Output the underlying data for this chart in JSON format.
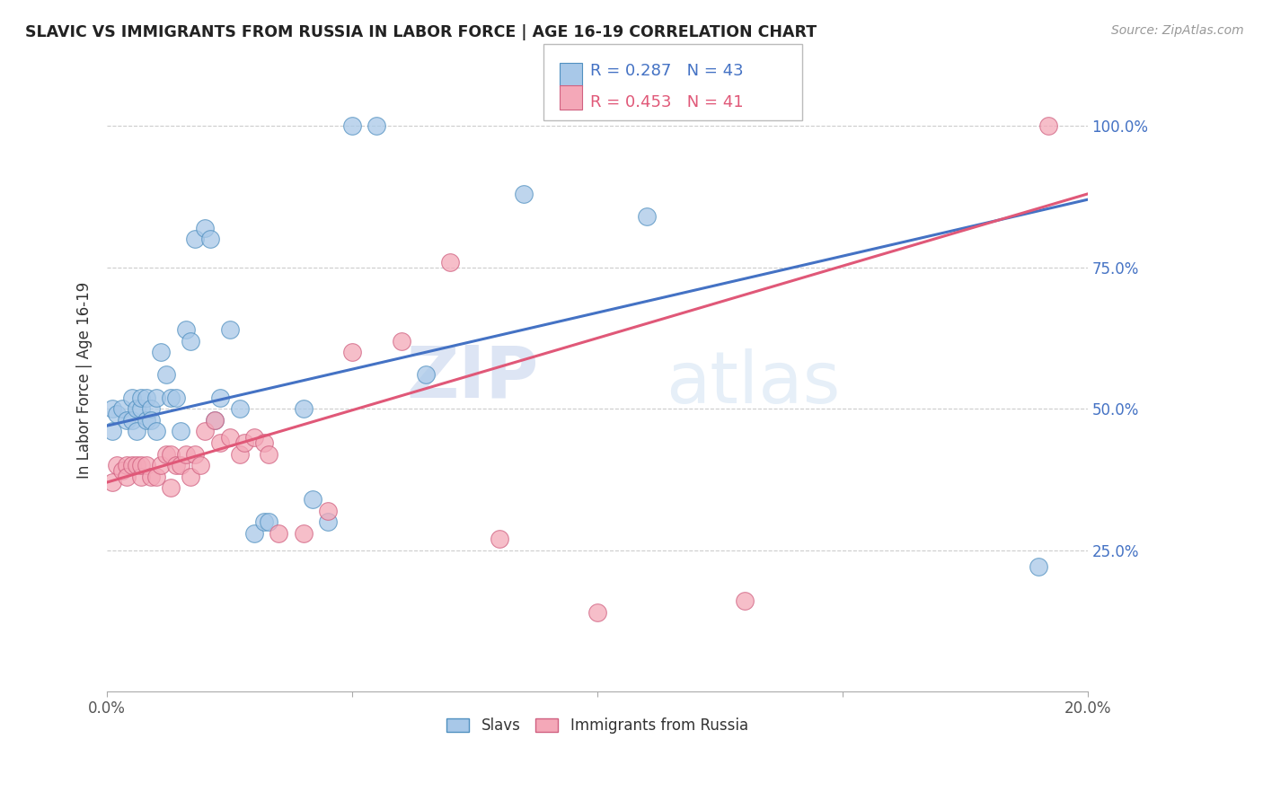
{
  "title": "SLAVIC VS IMMIGRANTS FROM RUSSIA IN LABOR FORCE | AGE 16-19 CORRELATION CHART",
  "source": "Source: ZipAtlas.com",
  "ylabel": "In Labor Force | Age 16-19",
  "xlim": [
    0.0,
    0.2
  ],
  "ylim": [
    0.0,
    1.1
  ],
  "xtick_pos": [
    0.0,
    0.05,
    0.1,
    0.15,
    0.2
  ],
  "xticklabels": [
    "0.0%",
    "",
    "",
    "",
    "20.0%"
  ],
  "ytick_positions": [
    0.25,
    0.5,
    0.75,
    1.0
  ],
  "ytick_labels": [
    "25.0%",
    "50.0%",
    "75.0%",
    "100.0%"
  ],
  "slavs_color": "#A8C8E8",
  "russia_color": "#F4A8B8",
  "slavs_line_color": "#4472C4",
  "russia_line_color": "#E05878",
  "slavs_R": 0.287,
  "slavs_N": 43,
  "russia_R": 0.453,
  "russia_N": 41,
  "watermark_zip": "ZIP",
  "watermark_atlas": "atlas",
  "slavs_x": [
    0.001,
    0.001,
    0.002,
    0.003,
    0.004,
    0.005,
    0.005,
    0.006,
    0.006,
    0.007,
    0.007,
    0.008,
    0.008,
    0.009,
    0.009,
    0.01,
    0.01,
    0.011,
    0.012,
    0.013,
    0.014,
    0.015,
    0.016,
    0.017,
    0.018,
    0.02,
    0.021,
    0.022,
    0.023,
    0.025,
    0.027,
    0.03,
    0.032,
    0.033,
    0.04,
    0.042,
    0.045,
    0.05,
    0.055,
    0.065,
    0.085,
    0.11,
    0.19
  ],
  "slavs_y": [
    0.46,
    0.5,
    0.49,
    0.5,
    0.48,
    0.48,
    0.52,
    0.5,
    0.46,
    0.5,
    0.52,
    0.48,
    0.52,
    0.5,
    0.48,
    0.52,
    0.46,
    0.6,
    0.56,
    0.52,
    0.52,
    0.46,
    0.64,
    0.62,
    0.8,
    0.82,
    0.8,
    0.48,
    0.52,
    0.64,
    0.5,
    0.28,
    0.3,
    0.3,
    0.5,
    0.34,
    0.3,
    1.0,
    1.0,
    0.56,
    0.88,
    0.84,
    0.22
  ],
  "russia_x": [
    0.001,
    0.002,
    0.003,
    0.004,
    0.004,
    0.005,
    0.006,
    0.007,
    0.007,
    0.008,
    0.009,
    0.01,
    0.011,
    0.012,
    0.013,
    0.013,
    0.014,
    0.015,
    0.016,
    0.017,
    0.018,
    0.019,
    0.02,
    0.022,
    0.023,
    0.025,
    0.027,
    0.028,
    0.03,
    0.032,
    0.033,
    0.035,
    0.04,
    0.045,
    0.05,
    0.06,
    0.07,
    0.08,
    0.1,
    0.13,
    0.192
  ],
  "russia_y": [
    0.37,
    0.4,
    0.39,
    0.4,
    0.38,
    0.4,
    0.4,
    0.38,
    0.4,
    0.4,
    0.38,
    0.38,
    0.4,
    0.42,
    0.42,
    0.36,
    0.4,
    0.4,
    0.42,
    0.38,
    0.42,
    0.4,
    0.46,
    0.48,
    0.44,
    0.45,
    0.42,
    0.44,
    0.45,
    0.44,
    0.42,
    0.28,
    0.28,
    0.32,
    0.6,
    0.62,
    0.76,
    0.27,
    0.14,
    0.16,
    1.0
  ],
  "slavs_line_x0": 0.0,
  "slavs_line_y0": 0.47,
  "slavs_line_x1": 0.2,
  "slavs_line_y1": 0.87,
  "russia_line_x0": 0.0,
  "russia_line_y0": 0.37,
  "russia_line_x1": 0.2,
  "russia_line_y1": 0.88
}
